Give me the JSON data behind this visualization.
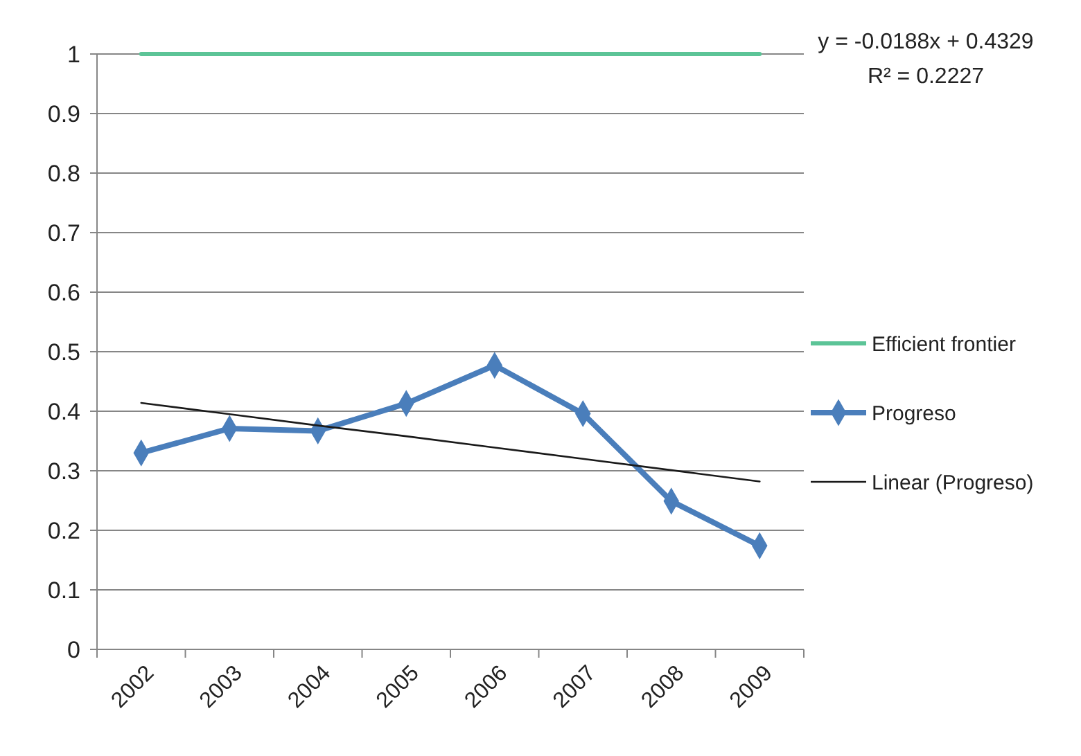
{
  "chart_data": {
    "type": "line",
    "categories": [
      "2002",
      "2003",
      "2004",
      "2005",
      "2006",
      "2007",
      "2008",
      "2009"
    ],
    "series": [
      {
        "name": "Efficient frontier",
        "color": "#5cc497",
        "values": [
          1,
          1,
          1,
          1,
          1,
          1,
          1,
          1
        ],
        "marker": "none"
      },
      {
        "name": "Progreso",
        "color": "#4a7ebb",
        "values": [
          0.33,
          0.371,
          0.367,
          0.413,
          0.477,
          0.396,
          0.249,
          0.174
        ],
        "marker": "diamond"
      },
      {
        "name": "Linear (Progreso)",
        "color": "#1a1a1a",
        "values": [
          0.414,
          0.395,
          0.376,
          0.358,
          0.339,
          0.32,
          0.301,
          0.282
        ],
        "marker": "none"
      }
    ],
    "ylim": [
      0,
      1
    ],
    "yticks": [
      0,
      0.1,
      0.2,
      0.3,
      0.4,
      0.5,
      0.6,
      0.7,
      0.8,
      0.9,
      1
    ],
    "grid": "y",
    "legend": "right",
    "annotations": [
      "y = -0.0188x + 0.4329",
      "R² = 0.2227"
    ]
  }
}
